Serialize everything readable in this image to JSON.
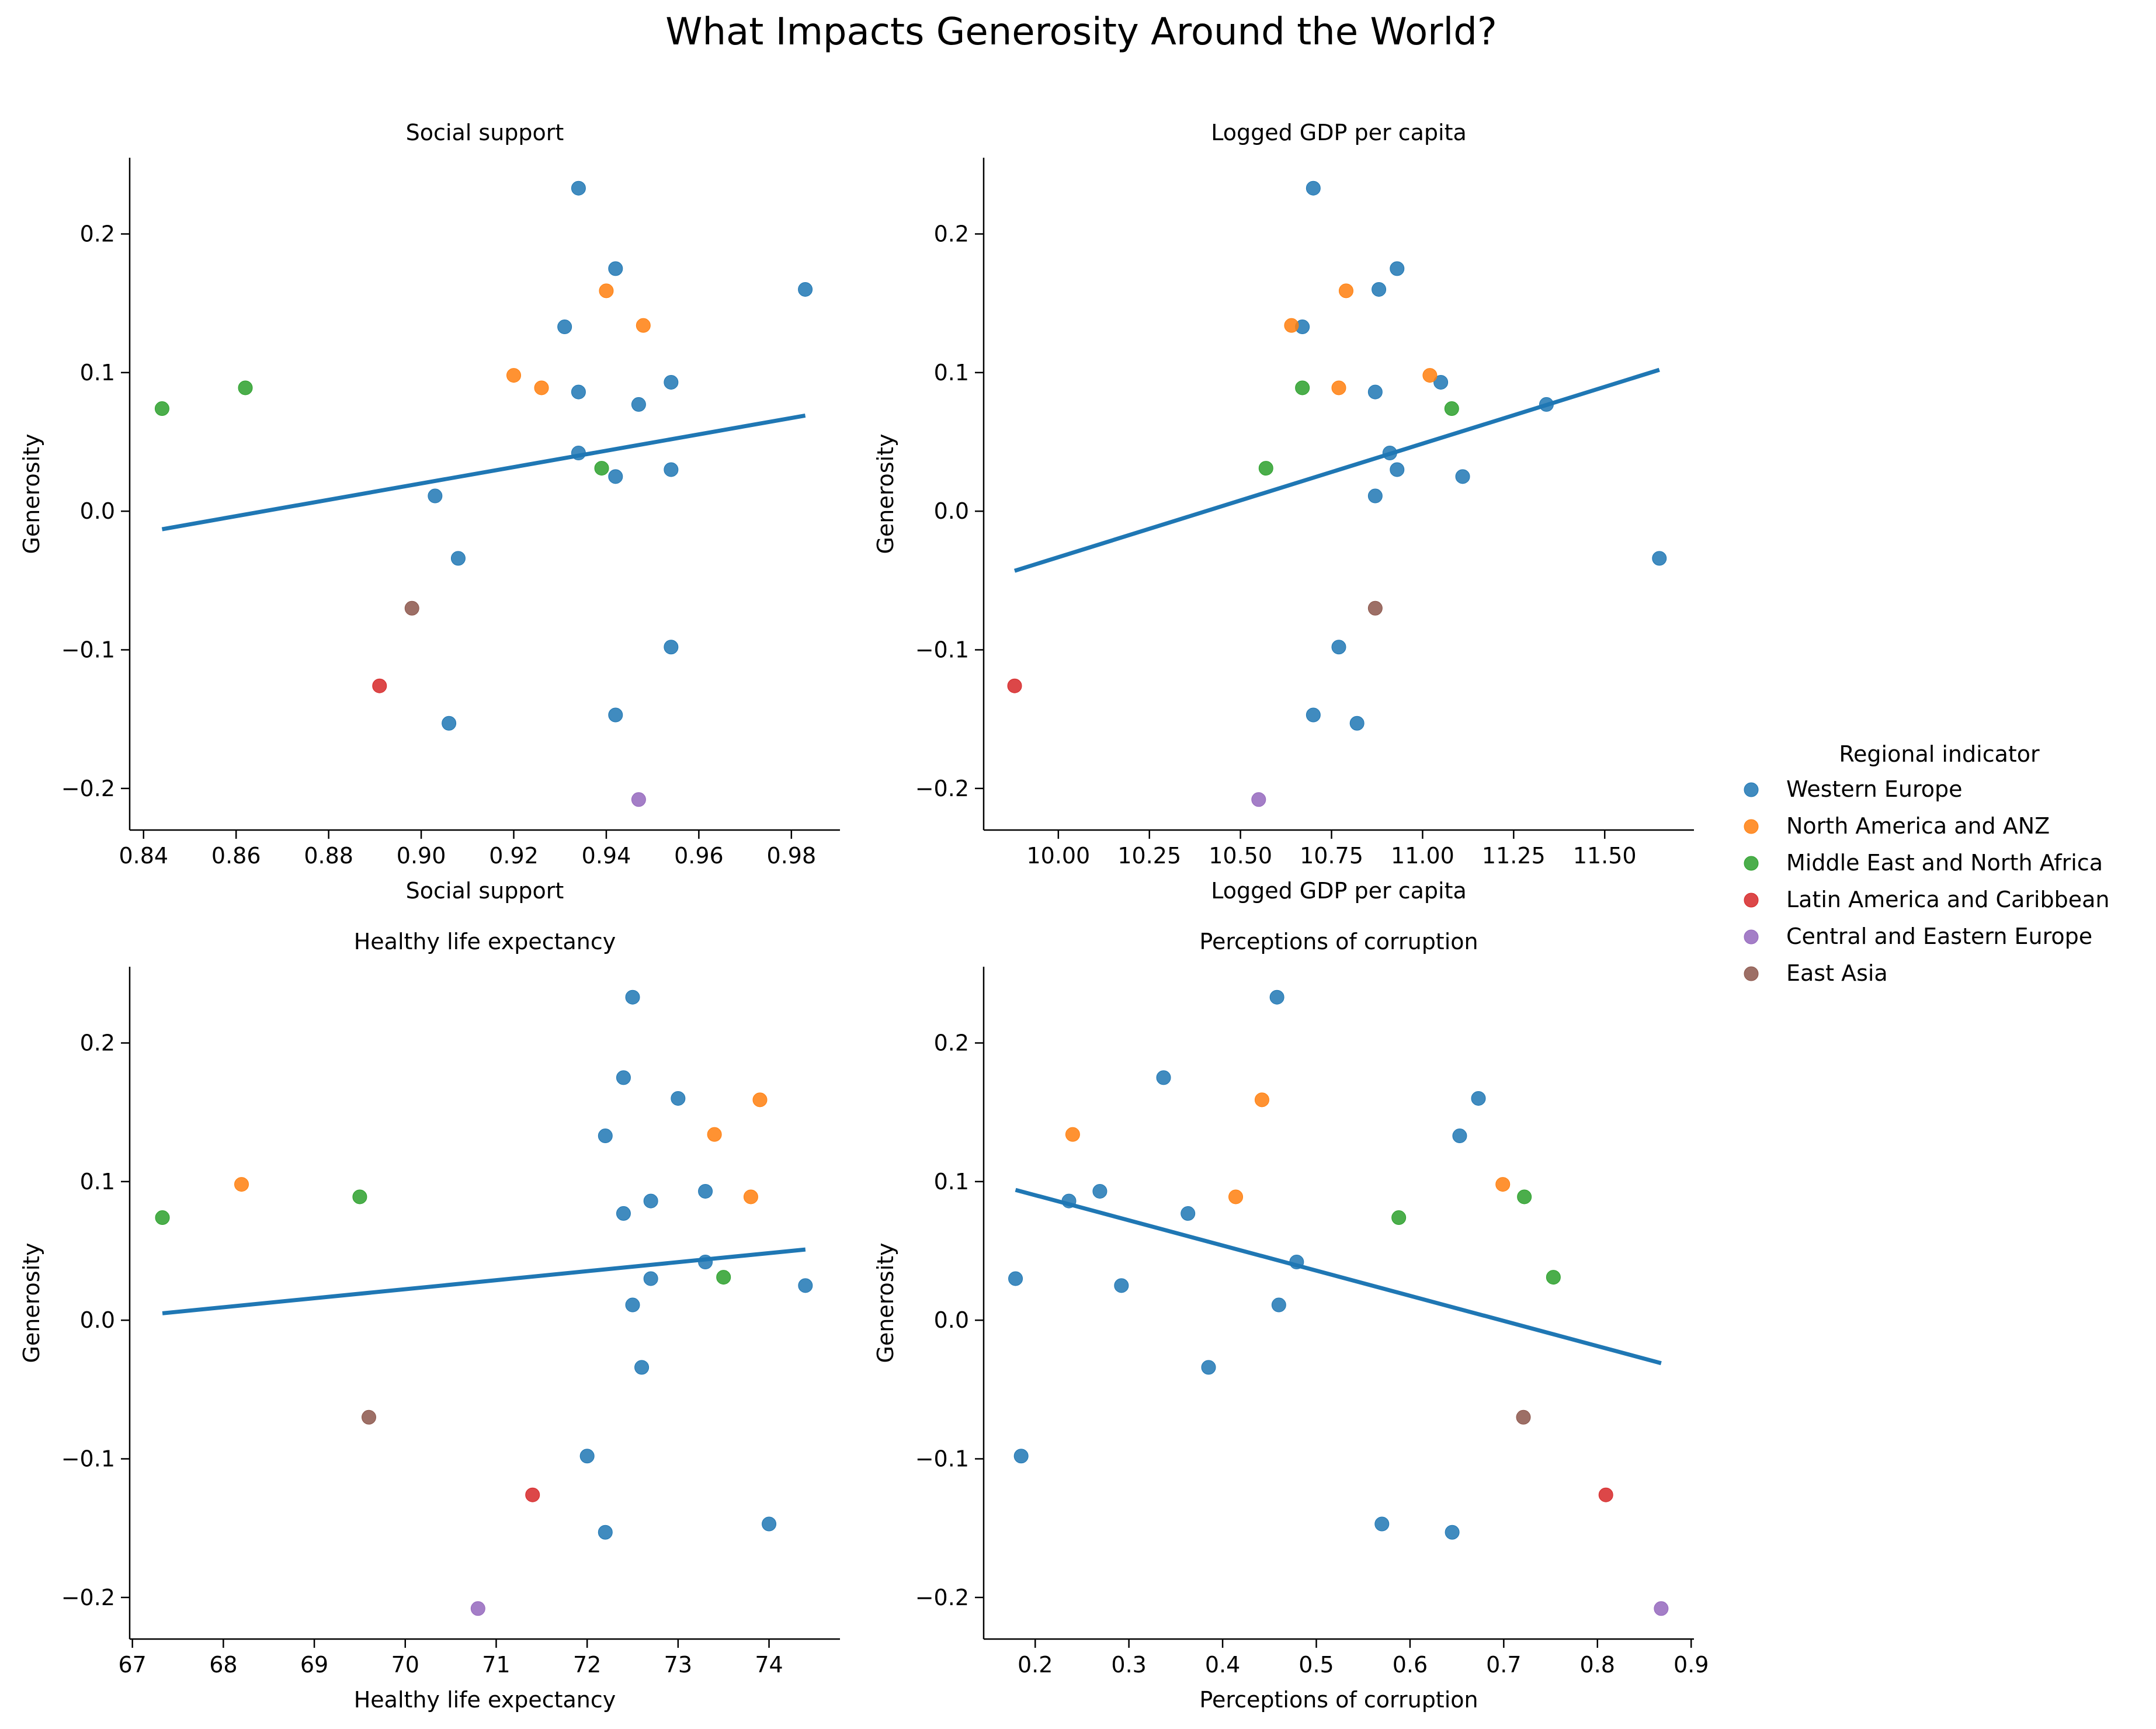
{
  "title": "What Impacts Generosity Around the World?",
  "legend": {
    "title": "Regional indicator",
    "placement": "right",
    "entries": [
      {
        "name": "Western Europe",
        "color": "#1f77b4"
      },
      {
        "name": "North America and ANZ",
        "color": "#ff7f0e"
      },
      {
        "name": "Middle East and North Africa",
        "color": "#2ca02c"
      },
      {
        "name": "Latin America and Caribbean",
        "color": "#d62728"
      },
      {
        "name": "Central and Eastern Europe",
        "color": "#9467bd"
      },
      {
        "name": "East Asia",
        "color": "#8c564b"
      }
    ]
  },
  "chart_data": [
    {
      "type": "scatter",
      "title": "Social support",
      "xlabel": "Social support",
      "ylabel": "Generosity",
      "xlim": [
        0.837,
        0.9905
      ],
      "ylim": [
        -0.23,
        0.255
      ],
      "xticks": [
        0.84,
        0.86,
        0.88,
        0.9,
        0.92,
        0.94,
        0.96,
        0.98
      ],
      "xtick_labels": [
        "0.84",
        "0.86",
        "0.88",
        "0.90",
        "0.92",
        "0.94",
        "0.96",
        "0.98"
      ],
      "yticks": [
        -0.2,
        -0.1,
        0.0,
        0.1,
        0.2
      ],
      "ytick_labels": [
        "−0.2",
        "−0.1",
        "0.0",
        "0.1",
        "0.2"
      ],
      "grid": false,
      "trendline": {
        "color": "#1f77b4",
        "x": [
          0.844,
          0.983
        ],
        "y": [
          -0.013,
          0.069
        ]
      },
      "series": [
        {
          "name": "Western Europe",
          "color": "#1f77b4",
          "points": [
            [
              0.934,
              0.233
            ],
            [
              0.942,
              0.175
            ],
            [
              0.983,
              0.16
            ],
            [
              0.931,
              0.133
            ],
            [
              0.954,
              0.093
            ],
            [
              0.934,
              0.086
            ],
            [
              0.947,
              0.077
            ],
            [
              0.934,
              0.042
            ],
            [
              0.954,
              0.03
            ],
            [
              0.942,
              0.025
            ],
            [
              0.903,
              0.011
            ],
            [
              0.908,
              -0.034
            ],
            [
              0.954,
              -0.098
            ],
            [
              0.942,
              -0.147
            ],
            [
              0.906,
              -0.153
            ]
          ]
        },
        {
          "name": "North America and ANZ",
          "color": "#ff7f0e",
          "points": [
            [
              0.94,
              0.159
            ],
            [
              0.948,
              0.134
            ],
            [
              0.92,
              0.098
            ],
            [
              0.926,
              0.089
            ]
          ]
        },
        {
          "name": "Middle East and North Africa",
          "color": "#2ca02c",
          "points": [
            [
              0.844,
              0.074
            ],
            [
              0.862,
              0.089
            ],
            [
              0.939,
              0.031
            ]
          ]
        },
        {
          "name": "Latin America and Caribbean",
          "color": "#d62728",
          "points": [
            [
              0.891,
              -0.126
            ]
          ]
        },
        {
          "name": "Central and Eastern Europe",
          "color": "#9467bd",
          "points": [
            [
              0.947,
              -0.208
            ]
          ]
        },
        {
          "name": "East Asia",
          "color": "#8c564b",
          "points": [
            [
              0.898,
              -0.07
            ]
          ]
        }
      ]
    },
    {
      "type": "scatter",
      "title": "Logged GDP per capita",
      "xlabel": "Logged GDP per capita",
      "ylabel": "Generosity",
      "xlim": [
        9.795,
        11.745
      ],
      "ylim": [
        -0.23,
        0.255
      ],
      "xticks": [
        10.0,
        10.25,
        10.5,
        10.75,
        11.0,
        11.25,
        11.5
      ],
      "xtick_labels": [
        "10.00",
        "10.25",
        "10.50",
        "10.75",
        "11.00",
        "11.25",
        "11.50"
      ],
      "yticks": [
        -0.2,
        -0.1,
        0.0,
        0.1,
        0.2
      ],
      "ytick_labels": [
        "−0.2",
        "−0.1",
        "0.0",
        "0.1",
        "0.2"
      ],
      "grid": false,
      "trendline": {
        "color": "#1f77b4",
        "x": [
          9.88,
          11.65
        ],
        "y": [
          -0.043,
          0.102
        ]
      },
      "series": [
        {
          "name": "Western Europe",
          "color": "#1f77b4",
          "points": [
            [
              10.7,
              0.233
            ],
            [
              10.93,
              0.175
            ],
            [
              10.88,
              0.16
            ],
            [
              10.67,
              0.133
            ],
            [
              11.05,
              0.093
            ],
            [
              10.87,
              0.086
            ],
            [
              11.34,
              0.077
            ],
            [
              10.91,
              0.042
            ],
            [
              10.93,
              0.03
            ],
            [
              11.11,
              0.025
            ],
            [
              10.87,
              0.011
            ],
            [
              11.65,
              -0.034
            ],
            [
              10.77,
              -0.098
            ],
            [
              10.7,
              -0.147
            ],
            [
              10.82,
              -0.153
            ]
          ]
        },
        {
          "name": "North America and ANZ",
          "color": "#ff7f0e",
          "points": [
            [
              10.79,
              0.159
            ],
            [
              10.64,
              0.134
            ],
            [
              11.02,
              0.098
            ],
            [
              10.77,
              0.089
            ]
          ]
        },
        {
          "name": "Middle East and North Africa",
          "color": "#2ca02c",
          "points": [
            [
              11.08,
              0.074
            ],
            [
              10.67,
              0.089
            ],
            [
              10.57,
              0.031
            ]
          ]
        },
        {
          "name": "Latin America and Caribbean",
          "color": "#d62728",
          "points": [
            [
              9.88,
              -0.126
            ]
          ]
        },
        {
          "name": "Central and Eastern Europe",
          "color": "#9467bd",
          "points": [
            [
              10.55,
              -0.208
            ]
          ]
        },
        {
          "name": "East Asia",
          "color": "#8c564b",
          "points": [
            [
              10.87,
              -0.07
            ]
          ]
        }
      ]
    },
    {
      "type": "scatter",
      "title": "Healthy life expectancy",
      "xlabel": "Healthy life expectancy",
      "ylabel": "Generosity",
      "xlim": [
        66.97,
        74.78
      ],
      "ylim": [
        -0.23,
        0.255
      ],
      "xticks": [
        67,
        68,
        69,
        70,
        71,
        72,
        73,
        74
      ],
      "xtick_labels": [
        "67",
        "68",
        "69",
        "70",
        "71",
        "72",
        "73",
        "74"
      ],
      "yticks": [
        -0.2,
        -0.1,
        0.0,
        0.1,
        0.2
      ],
      "ytick_labels": [
        "−0.2",
        "−0.1",
        "0.0",
        "0.1",
        "0.2"
      ],
      "grid": false,
      "trendline": {
        "color": "#1f77b4",
        "x": [
          67.33,
          74.4
        ],
        "y": [
          0.005,
          0.051
        ]
      },
      "series": [
        {
          "name": "Western Europe",
          "color": "#1f77b4",
          "points": [
            [
              72.5,
              0.233
            ],
            [
              72.4,
              0.175
            ],
            [
              73.0,
              0.16
            ],
            [
              72.2,
              0.133
            ],
            [
              73.3,
              0.093
            ],
            [
              72.7,
              0.086
            ],
            [
              72.4,
              0.077
            ],
            [
              73.3,
              0.042
            ],
            [
              72.7,
              0.03
            ],
            [
              74.4,
              0.025
            ],
            [
              72.5,
              0.011
            ],
            [
              72.6,
              -0.034
            ],
            [
              72.0,
              -0.098
            ],
            [
              74.0,
              -0.147
            ],
            [
              72.2,
              -0.153
            ]
          ]
        },
        {
          "name": "North America and ANZ",
          "color": "#ff7f0e",
          "points": [
            [
              73.9,
              0.159
            ],
            [
              73.4,
              0.134
            ],
            [
              68.2,
              0.098
            ],
            [
              73.8,
              0.089
            ]
          ]
        },
        {
          "name": "Middle East and North Africa",
          "color": "#2ca02c",
          "points": [
            [
              67.33,
              0.074
            ],
            [
              69.5,
              0.089
            ],
            [
              73.5,
              0.031
            ]
          ]
        },
        {
          "name": "Latin America and Caribbean",
          "color": "#d62728",
          "points": [
            [
              71.4,
              -0.126
            ]
          ]
        },
        {
          "name": "Central and Eastern Europe",
          "color": "#9467bd",
          "points": [
            [
              70.8,
              -0.208
            ]
          ]
        },
        {
          "name": "East Asia",
          "color": "#8c564b",
          "points": [
            [
              69.6,
              -0.07
            ]
          ]
        }
      ]
    },
    {
      "type": "scatter",
      "title": "Perceptions of corruption",
      "xlabel": "Perceptions of corruption",
      "ylabel": "Generosity",
      "xlim": [
        0.145,
        0.903
      ],
      "ylim": [
        -0.23,
        0.255
      ],
      "xticks": [
        0.2,
        0.3,
        0.4,
        0.5,
        0.6,
        0.7,
        0.8,
        0.9
      ],
      "xtick_labels": [
        "0.2",
        "0.3",
        "0.4",
        "0.5",
        "0.6",
        "0.7",
        "0.8",
        "0.9"
      ],
      "yticks": [
        -0.2,
        -0.1,
        0.0,
        0.1,
        0.2
      ],
      "ytick_labels": [
        "−0.2",
        "−0.1",
        "0.0",
        "0.1",
        "0.2"
      ],
      "grid": false,
      "trendline": {
        "color": "#1f77b4",
        "x": [
          0.179,
          0.868
        ],
        "y": [
          0.094,
          -0.031
        ]
      },
      "series": [
        {
          "name": "Western Europe",
          "color": "#1f77b4",
          "points": [
            [
              0.458,
              0.233
            ],
            [
              0.337,
              0.175
            ],
            [
              0.673,
              0.16
            ],
            [
              0.653,
              0.133
            ],
            [
              0.269,
              0.093
            ],
            [
              0.236,
              0.086
            ],
            [
              0.363,
              0.077
            ],
            [
              0.479,
              0.042
            ],
            [
              0.179,
              0.03
            ],
            [
              0.292,
              0.025
            ],
            [
              0.46,
              0.011
            ],
            [
              0.385,
              -0.034
            ],
            [
              0.185,
              -0.098
            ],
            [
              0.57,
              -0.147
            ],
            [
              0.645,
              -0.153
            ]
          ]
        },
        {
          "name": "North America and ANZ",
          "color": "#ff7f0e",
          "points": [
            [
              0.442,
              0.159
            ],
            [
              0.24,
              0.134
            ],
            [
              0.699,
              0.098
            ],
            [
              0.414,
              0.089
            ]
          ]
        },
        {
          "name": "Middle East and North Africa",
          "color": "#2ca02c",
          "points": [
            [
              0.588,
              0.074
            ],
            [
              0.722,
              0.089
            ],
            [
              0.753,
              0.031
            ]
          ]
        },
        {
          "name": "Latin America and Caribbean",
          "color": "#d62728",
          "points": [
            [
              0.809,
              -0.126
            ]
          ]
        },
        {
          "name": "Central and Eastern Europe",
          "color": "#9467bd",
          "points": [
            [
              0.868,
              -0.208
            ]
          ]
        },
        {
          "name": "East Asia",
          "color": "#8c564b",
          "points": [
            [
              0.721,
              -0.07
            ]
          ]
        }
      ]
    }
  ]
}
